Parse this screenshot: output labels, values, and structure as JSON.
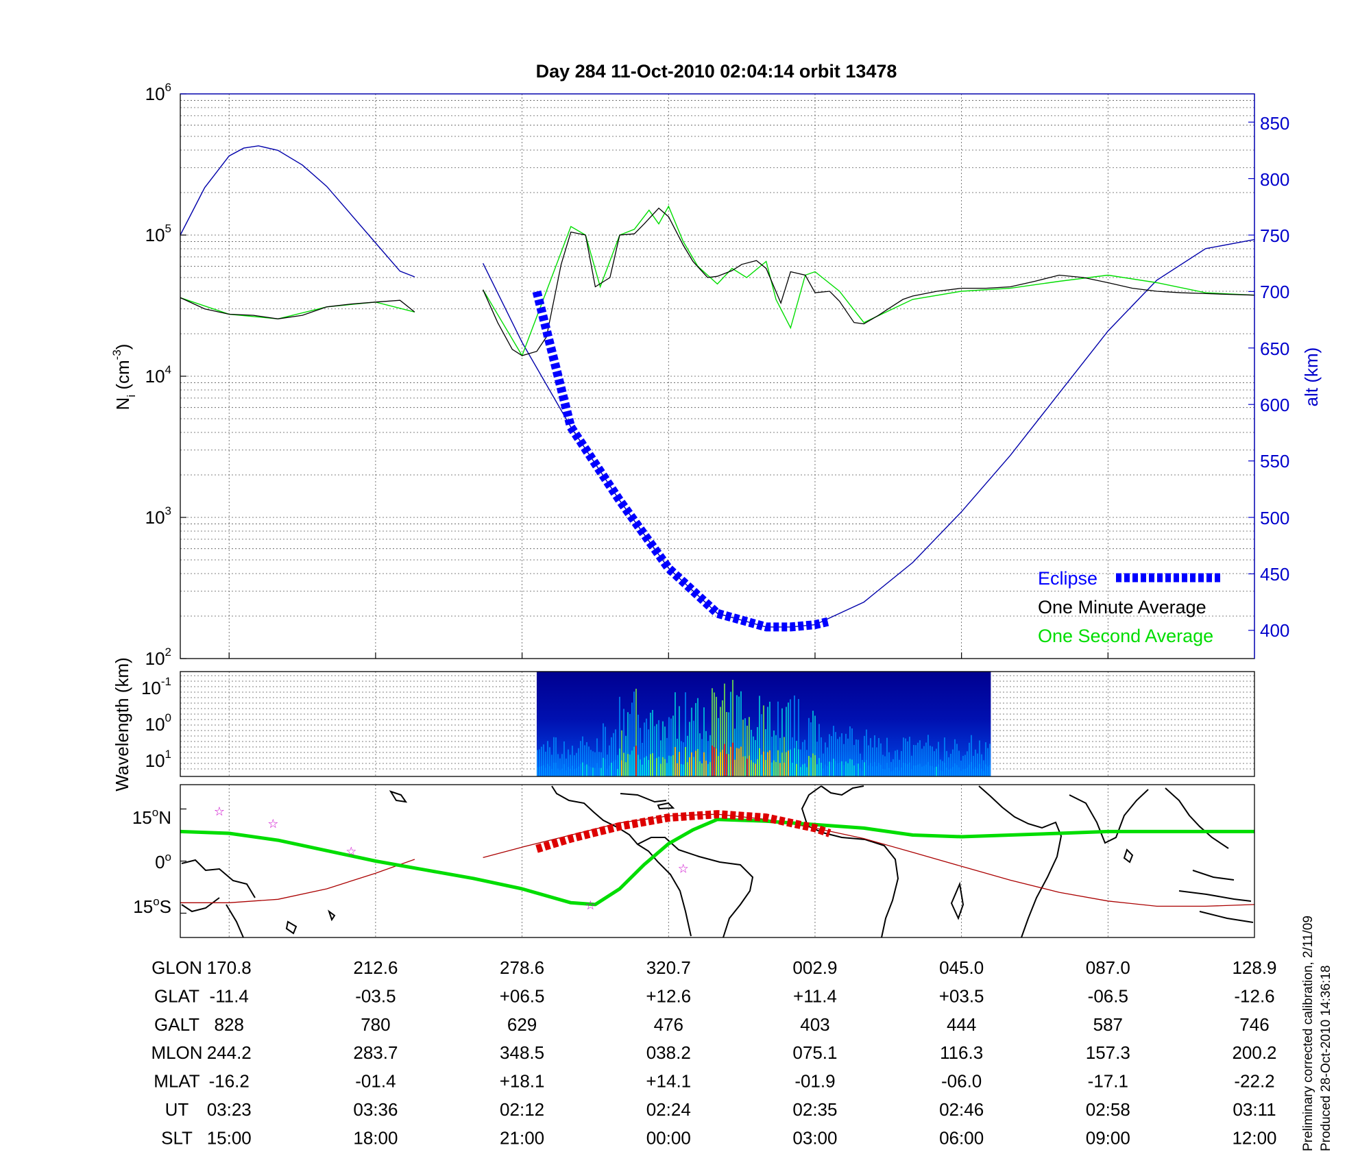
{
  "title": "Day 284  11-Oct-2010 02:04:14   orbit 13478",
  "colors": {
    "eclipse": "#0000ff",
    "minute": "#000000",
    "second": "#00dd00",
    "altitude": "#0000aa",
    "track": "#00dd00",
    "mag_equator": "#aa0000",
    "eclipse_track": "#dd0000",
    "star": "#cc00cc"
  },
  "panel1": {
    "ylabel_left": {
      "base": "N",
      "sub": "i",
      "unit": " (cm",
      "exp": "-3",
      "close": ")"
    },
    "ylabel_right": "alt (km)",
    "left_ticks": [
      {
        "base": "10",
        "exp": "2"
      },
      {
        "base": "10",
        "exp": "3"
      },
      {
        "base": "10",
        "exp": "4"
      },
      {
        "base": "10",
        "exp": "5"
      },
      {
        "base": "10",
        "exp": "6"
      }
    ],
    "right_ticks": [
      "400",
      "450",
      "500",
      "550",
      "600",
      "650",
      "700",
      "750",
      "800",
      "850"
    ],
    "legend": {
      "eclipse": "Eclipse",
      "minute": "One Minute Average",
      "second": "One Second Average"
    }
  },
  "panel2": {
    "ylabel": "Wavelength (km)",
    "ticks": [
      {
        "base": "10",
        "exp": "-1"
      },
      {
        "base": "10",
        "exp": "0"
      },
      {
        "base": "10",
        "exp": "1"
      }
    ]
  },
  "panel3": {
    "ticks": [
      {
        "deg": "15",
        "hemi": "N"
      },
      {
        "deg": "0",
        "hemi": ""
      },
      {
        "deg": "15",
        "hemi": "S"
      }
    ]
  },
  "table": {
    "rows": [
      {
        "label": "GLON",
        "values": [
          "170.8",
          "212.6",
          "278.6",
          "320.7",
          "002.9",
          "045.0",
          "087.0",
          "128.9"
        ]
      },
      {
        "label": "GLAT",
        "values": [
          "-11.4",
          "-03.5",
          "+06.5",
          "+12.6",
          "+11.4",
          "+03.5",
          "-06.5",
          "-12.6"
        ]
      },
      {
        "label": "GALT",
        "values": [
          "828",
          "780",
          "629",
          "476",
          "403",
          "444",
          "587",
          "746"
        ]
      },
      {
        "label": "MLON",
        "values": [
          "244.2",
          "283.7",
          "348.5",
          "038.2",
          "075.1",
          "116.3",
          "157.3",
          "200.2"
        ]
      },
      {
        "label": "MLAT",
        "values": [
          "-16.2",
          "-01.4",
          "+18.1",
          "+14.1",
          "-01.9",
          "-06.0",
          "-17.1",
          "-22.2"
        ]
      },
      {
        "label": "UT",
        "values": [
          "03:23",
          "03:36",
          "02:12",
          "02:24",
          "02:35",
          "02:46",
          "02:58",
          "03:11"
        ]
      },
      {
        "label": "SLT",
        "values": [
          "15:00",
          "18:00",
          "21:00",
          "00:00",
          "03:00",
          "06:00",
          "09:00",
          "12:00"
        ]
      }
    ]
  },
  "footnote": {
    "line1": "Preliminary corrected calibration, 2/11/09",
    "line2": "Produced 28-Oct-2010 14:36:18"
  },
  "chart_data": [
    {
      "type": "line",
      "x_description_units": "SLT (h)",
      "x_range": [
        14.0,
        36.0
      ],
      "y_left_scale": "log",
      "y_left_range": [
        100,
        1000000
      ],
      "y_right_range": [
        375,
        875
      ],
      "grid": true,
      "legend_position": "bottom-right",
      "series": [
        {
          "name": "One Minute Average",
          "axis": "left",
          "x": [
            14.0,
            14.5,
            15.0,
            15.5,
            16.0,
            16.5,
            17.0,
            17.5,
            18.0,
            18.5,
            18.8,
            20.2,
            20.5,
            20.8,
            21.0,
            21.3,
            21.5,
            21.8,
            22.0,
            22.3,
            22.5,
            22.8,
            23.0,
            23.3,
            23.5,
            23.8,
            24.0,
            24.3,
            24.5,
            24.8,
            25.0,
            25.3,
            25.5,
            25.8,
            26.0,
            26.3,
            26.5,
            26.8,
            27.0,
            27.3,
            27.5,
            27.8,
            28.0,
            28.3,
            28.5,
            28.8,
            29.0,
            29.5,
            30.0,
            30.5,
            31.0,
            31.5,
            32.0,
            32.5,
            33.0,
            33.5,
            34.0,
            34.5,
            35.0,
            35.5,
            36.0
          ],
          "y": [
            36000,
            30000,
            27500,
            27000,
            25500,
            27000,
            31000,
            32500,
            33500,
            34500,
            28500,
            41000,
            24000,
            15500,
            14000,
            15000,
            19000,
            62000,
            105000,
            100000,
            43000,
            50000,
            100000,
            102000,
            120000,
            155000,
            135000,
            85000,
            65000,
            50000,
            51000,
            56000,
            62000,
            66000,
            58000,
            33000,
            55000,
            52000,
            39000,
            40000,
            34000,
            24000,
            23500,
            27000,
            30000,
            35000,
            37000,
            40000,
            42000,
            42000,
            43000,
            47000,
            52000,
            50000,
            46000,
            42000,
            40000,
            39000,
            38500,
            38000,
            37500
          ]
        },
        {
          "name": "One Second Average",
          "axis": "left",
          "x": [
            14.0,
            15.0,
            16.0,
            17.0,
            18.0,
            18.8,
            20.2,
            21.0,
            22.0,
            22.3,
            22.6,
            23.0,
            23.3,
            23.6,
            23.8,
            24.0,
            24.3,
            24.6,
            25.0,
            25.3,
            25.6,
            26.0,
            26.2,
            26.5,
            26.8,
            27.0,
            27.5,
            28.0,
            29.0,
            30.0,
            31.0,
            32.0,
            33.0,
            34.0,
            35.0,
            36.0
          ],
          "y": [
            36000,
            27500,
            25500,
            31000,
            33500,
            28500,
            41000,
            14000,
            115000,
            100000,
            43000,
            100000,
            110000,
            150000,
            120000,
            160000,
            90000,
            60000,
            45000,
            58000,
            50000,
            65000,
            35000,
            22000,
            52000,
            55000,
            40000,
            24000,
            35000,
            40000,
            42000,
            47000,
            52000,
            46000,
            39000,
            37500
          ]
        },
        {
          "name": "alt (km)",
          "axis": "right",
          "x": [
            14.0,
            14.5,
            15.0,
            15.3,
            15.6,
            16.0,
            16.5,
            17.0,
            17.5,
            18.0,
            18.5,
            18.8,
            20.2,
            21.0,
            22.0,
            23.0,
            24.0,
            25.0,
            26.0,
            26.5,
            27.0,
            28.0,
            29.0,
            30.0,
            31.0,
            32.0,
            33.0,
            34.0,
            35.0,
            36.0
          ],
          "y": [
            750,
            792,
            820,
            827,
            829,
            825,
            812,
            793,
            768,
            743,
            718,
            713,
            725,
            655,
            580,
            515,
            455,
            415,
            403,
            403,
            405,
            425,
            460,
            505,
            555,
            610,
            665,
            710,
            738,
            746
          ]
        },
        {
          "name": "Eclipse",
          "axis": "right",
          "x": [
            21.3,
            22.0,
            23.0,
            24.0,
            25.0,
            26.0,
            26.5,
            27.0,
            27.3
          ],
          "y": [
            700,
            580,
            515,
            455,
            415,
            403,
            403,
            405,
            408
          ]
        }
      ]
    },
    {
      "type": "heatmap",
      "ylabel": "Wavelength (km)",
      "y_scale": "log",
      "x_range_covered": [
        21.3,
        30.6
      ]
    },
    {
      "type": "line",
      "y_range_deg": [
        -22,
        22
      ],
      "series": [
        {
          "name": "track",
          "x": [
            14.0,
            15.0,
            16.0,
            17.0,
            18.0,
            19.0,
            20.0,
            21.0,
            22.0,
            22.5,
            23.0,
            23.5,
            24.0,
            24.5,
            25.0,
            26.0,
            27.0,
            28.0,
            29.0,
            30.0,
            31.0,
            32.0,
            33.0,
            34.0,
            35.0,
            36.0
          ],
          "y": [
            8.5,
            8.0,
            6.0,
            3.0,
            0.0,
            -2.5,
            -5.0,
            -8.0,
            -12.0,
            -12.5,
            -8.0,
            -1.0,
            5.0,
            9.0,
            12.0,
            11.5,
            10.5,
            9.5,
            7.5,
            7.0,
            7.5,
            8.0,
            8.5,
            8.5,
            8.5,
            8.5
          ]
        },
        {
          "name": "mag_equator",
          "x": [
            14.0,
            15.0,
            16.0,
            17.0,
            18.0,
            18.8,
            20.2,
            21.0,
            22.0,
            23.0,
            24.0,
            25.0,
            26.0,
            27.0,
            28.0,
            29.0,
            30.0,
            31.0,
            32.0,
            33.0,
            34.0,
            35.0,
            36.0
          ],
          "y": [
            -12.0,
            -12.0,
            -11.0,
            -8.0,
            -3.5,
            0.5,
            1.0,
            4.0,
            7.5,
            11.0,
            13.0,
            13.5,
            12.0,
            9.5,
            6.5,
            2.5,
            -1.5,
            -5.5,
            -9.0,
            -11.5,
            -13.0,
            -13.0,
            -12.5
          ]
        },
        {
          "name": "eclipse_track",
          "x": [
            21.3,
            22.0,
            23.0,
            24.0,
            25.0,
            26.0,
            27.0,
            27.3
          ],
          "y": [
            3.5,
            6.5,
            10.0,
            12.5,
            13.5,
            12.5,
            9.5,
            8.0
          ]
        },
        {
          "name": "stars",
          "x": [
            14.8,
            15.9,
            17.5,
            22.4,
            24.3
          ],
          "y": [
            14.5,
            11.0,
            3.0,
            -12.5,
            -2.0
          ]
        }
      ]
    }
  ]
}
